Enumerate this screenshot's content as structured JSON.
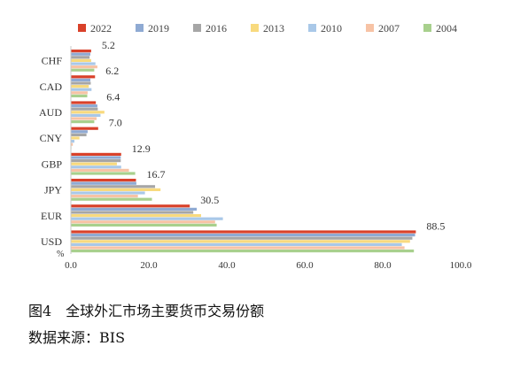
{
  "caption": {
    "title": "图4　全球外汇市场主要货币交易份额",
    "source": "数据来源：BIS"
  },
  "chart_data": {
    "type": "bar",
    "orientation": "horizontal",
    "title": "",
    "xlabel": "",
    "ylabel": "",
    "unit_label": "%",
    "xlim": [
      0,
      100
    ],
    "x_ticks": [
      "0.0",
      "20.0",
      "40.0",
      "60.0",
      "80.0",
      "100.0"
    ],
    "grid": false,
    "legend_position": "top",
    "categories": [
      "CHF",
      "CAD",
      "AUD",
      "CNY",
      "GBP",
      "JPY",
      "EUR",
      "USD"
    ],
    "series": [
      {
        "name": "2022",
        "color": "#d9412a",
        "values": [
          5.2,
          6.2,
          6.4,
          7.0,
          12.9,
          16.7,
          30.5,
          88.5
        ]
      },
      {
        "name": "2019",
        "color": "#8faad3",
        "values": [
          5.0,
          5.0,
          6.8,
          4.3,
          12.8,
          16.8,
          32.3,
          88.3
        ]
      },
      {
        "name": "2016",
        "color": "#a6a6a6",
        "values": [
          4.8,
          5.1,
          6.9,
          4.0,
          12.8,
          21.6,
          31.4,
          87.6
        ]
      },
      {
        "name": "2013",
        "color": "#f8da7e",
        "values": [
          5.2,
          4.6,
          8.6,
          2.2,
          11.8,
          23.0,
          33.4,
          87.0
        ]
      },
      {
        "name": "2010",
        "color": "#a9c8e8",
        "values": [
          6.3,
          5.3,
          7.6,
          0.9,
          12.9,
          19.0,
          39.0,
          84.9
        ]
      },
      {
        "name": "2007",
        "color": "#f7c3a5",
        "values": [
          6.8,
          4.3,
          6.6,
          0.5,
          14.9,
          17.2,
          37.0,
          85.6
        ]
      },
      {
        "name": "2004",
        "color": "#a8d08d",
        "values": [
          6.0,
          4.2,
          6.0,
          0.1,
          16.5,
          20.8,
          37.4,
          88.0
        ]
      }
    ],
    "data_labels": [
      "5.2",
      "6.2",
      "6.4",
      "7.0",
      "12.9",
      "16.7",
      "30.5",
      "88.5"
    ]
  }
}
